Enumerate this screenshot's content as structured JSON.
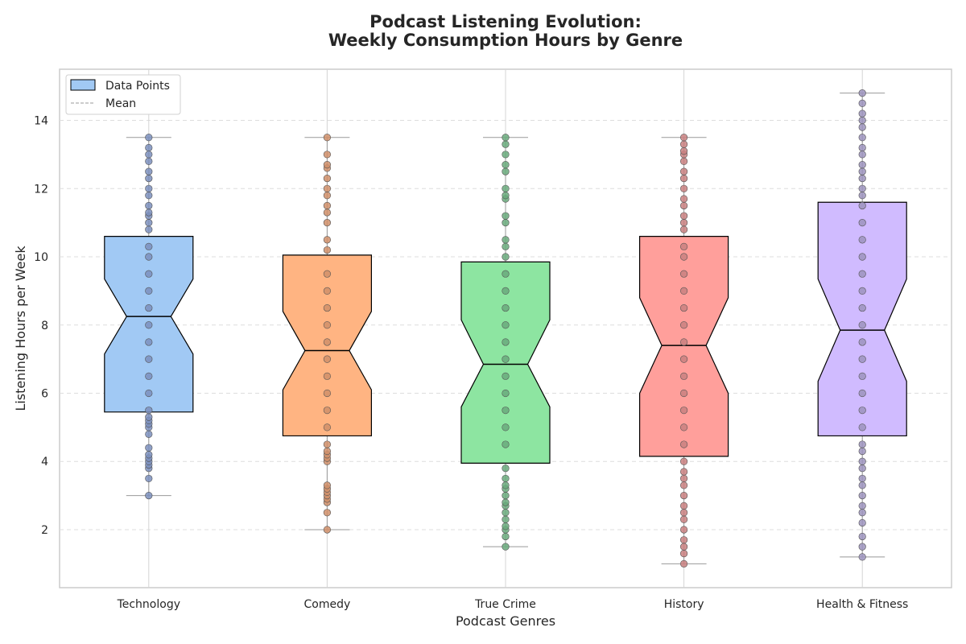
{
  "chart_data": {
    "type": "box",
    "title_lines": [
      "Podcast Listening Evolution:",
      "Weekly Consumption Hours by Genre"
    ],
    "xlabel": "Podcast Genres",
    "ylabel": "Listening Hours per Week",
    "ylim": [
      0.3,
      15.5
    ],
    "yticks": [
      "2",
      "4",
      "6",
      "8",
      "10",
      "12",
      "14"
    ],
    "grid": true,
    "legend_position": "top-left",
    "legend": {
      "data_points_label": "Data Points",
      "mean_label": "Mean"
    },
    "categories": [
      "Technology",
      "Comedy",
      "True Crime",
      "History",
      "Health & Fitness"
    ],
    "series": [
      {
        "category": "Technology",
        "color": "#a1c9f4",
        "point_color": "#7b8fbd",
        "min": 3.0,
        "q1": 5.45,
        "median": 8.25,
        "q3": 10.6,
        "max": 13.5,
        "notch_low": 7.15,
        "notch_high": 9.35,
        "points": [
          3.0,
          3.5,
          3.8,
          3.9,
          4.0,
          4.1,
          4.2,
          4.4,
          4.8,
          5.0,
          5.1,
          5.2,
          5.3,
          5.5,
          6.0,
          6.5,
          7.0,
          7.5,
          8.0,
          8.5,
          9.0,
          9.5,
          10.0,
          10.3,
          10.8,
          11.0,
          11.2,
          11.3,
          11.5,
          11.8,
          12.0,
          12.3,
          12.5,
          12.8,
          13.0,
          13.2,
          13.5
        ]
      },
      {
        "category": "Comedy",
        "color": "#ffb482",
        "point_color": "#d08f6a",
        "min": 2.0,
        "q1": 4.75,
        "median": 7.25,
        "q3": 10.05,
        "max": 13.5,
        "notch_low": 6.1,
        "notch_high": 8.4,
        "points": [
          2.0,
          2.5,
          2.8,
          2.9,
          3.0,
          3.1,
          3.2,
          3.3,
          4.0,
          4.1,
          4.2,
          4.3,
          4.5,
          5.0,
          5.5,
          6.0,
          6.5,
          7.0,
          7.5,
          8.0,
          8.5,
          9.0,
          9.5,
          10.2,
          10.5,
          11.0,
          11.3,
          11.5,
          11.8,
          12.0,
          12.3,
          12.6,
          12.7,
          13.0,
          13.5
        ]
      },
      {
        "category": "True Crime",
        "color": "#8de5a1",
        "point_color": "#6aaa7c",
        "min": 1.5,
        "q1": 3.95,
        "median": 6.85,
        "q3": 9.85,
        "max": 13.5,
        "notch_low": 5.6,
        "notch_high": 8.15,
        "points": [
          1.5,
          1.8,
          2.0,
          2.1,
          2.3,
          2.5,
          2.7,
          2.8,
          3.0,
          3.2,
          3.3,
          3.5,
          3.8,
          4.5,
          5.0,
          5.5,
          6.0,
          6.5,
          7.0,
          7.5,
          8.0,
          8.5,
          9.0,
          9.5,
          10.0,
          10.3,
          10.5,
          11.0,
          11.2,
          11.7,
          11.8,
          12.0,
          12.5,
          12.7,
          13.0,
          13.3,
          13.5
        ]
      },
      {
        "category": "History",
        "color": "#ff9f9b",
        "point_color": "#c98080",
        "min": 1.0,
        "q1": 4.15,
        "median": 7.4,
        "q3": 10.6,
        "max": 13.5,
        "notch_low": 6.0,
        "notch_high": 8.8,
        "points": [
          1.0,
          1.3,
          1.5,
          1.7,
          2.0,
          2.3,
          2.5,
          2.7,
          3.0,
          3.3,
          3.5,
          3.7,
          4.0,
          4.5,
          5.0,
          5.5,
          6.0,
          6.5,
          7.0,
          7.5,
          8.0,
          8.5,
          9.0,
          9.5,
          10.0,
          10.3,
          10.8,
          11.0,
          11.2,
          11.5,
          11.7,
          12.0,
          12.3,
          12.5,
          12.8,
          13.0,
          13.1,
          13.3,
          13.5
        ]
      },
      {
        "category": "Health & Fitness",
        "color": "#d0bbff",
        "point_color": "#9c93bd",
        "min": 1.2,
        "q1": 4.75,
        "median": 7.85,
        "q3": 11.6,
        "max": 14.8,
        "notch_low": 6.35,
        "notch_high": 9.35,
        "points": [
          1.2,
          1.5,
          1.8,
          2.2,
          2.5,
          2.7,
          3.0,
          3.3,
          3.5,
          3.8,
          4.0,
          4.3,
          4.5,
          5.0,
          5.5,
          6.0,
          6.5,
          7.0,
          7.5,
          8.0,
          8.5,
          9.0,
          9.5,
          10.0,
          10.5,
          11.0,
          11.5,
          11.8,
          12.0,
          12.3,
          12.5,
          12.7,
          13.0,
          13.2,
          13.5,
          13.8,
          14.0,
          14.2,
          14.5,
          14.8
        ]
      }
    ]
  }
}
